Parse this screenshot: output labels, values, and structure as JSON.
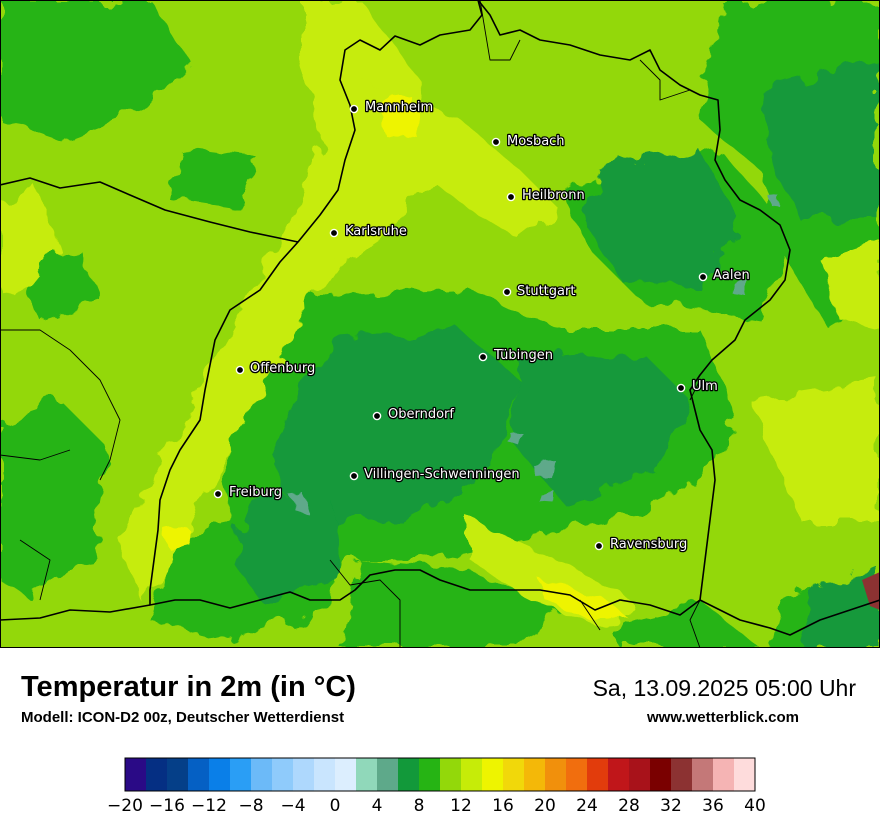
{
  "title": "Temperatur in 2m (in °C)",
  "model": "Modell: ICON-D2 00z, Deutscher Wetterdienst",
  "datetime": "Sa, 13.09.2025 05:00 Uhr",
  "website": "www.wetterblick.com",
  "cities": [
    {
      "name": "Mannheim"
    },
    {
      "name": "Mosbach"
    },
    {
      "name": "Heilbronn"
    },
    {
      "name": "Karlsruhe"
    },
    {
      "name": "Aalen"
    },
    {
      "name": "Stuttgart"
    },
    {
      "name": "Tübingen"
    },
    {
      "name": "Offenburg"
    },
    {
      "name": "Ulm"
    },
    {
      "name": "Oberndorf"
    },
    {
      "name": "Villingen-Schwenningen"
    },
    {
      "name": "Freiburg"
    },
    {
      "name": "Ravensburg"
    }
  ],
  "legend": {
    "unit": "°C",
    "ticks": [
      "−20",
      "−16",
      "−12",
      "−8",
      "−4",
      "0",
      "4",
      "8",
      "12",
      "16",
      "20",
      "24",
      "28",
      "32",
      "36",
      "40"
    ],
    "colors": [
      "#2a0a86",
      "#052f83",
      "#053f88",
      "#0560c4",
      "#0a7fe8",
      "#2a9ef5",
      "#6cbaf8",
      "#8fcbfb",
      "#aed8fd",
      "#c9e5fe",
      "#dceefe",
      "#90d8ba",
      "#5ea98a",
      "#12993a",
      "#26b414",
      "#93d80a",
      "#c6ec08",
      "#eef400",
      "#f1d80a",
      "#f4b808",
      "#f1900c",
      "#f16e0e",
      "#e23c0c",
      "#c0161a",
      "#a8121a",
      "#7a0000",
      "#8c3232",
      "#c47878",
      "#f5b4b4",
      "#fedcdc"
    ]
  },
  "colors": {
    "bright_green": "#93d80a",
    "mid_green": "#26b414",
    "dark_green": "#12993a",
    "yellow_green": "#c6ec08",
    "yellow": "#eef400",
    "teal": "#5ea98a",
    "border": "#000000"
  }
}
